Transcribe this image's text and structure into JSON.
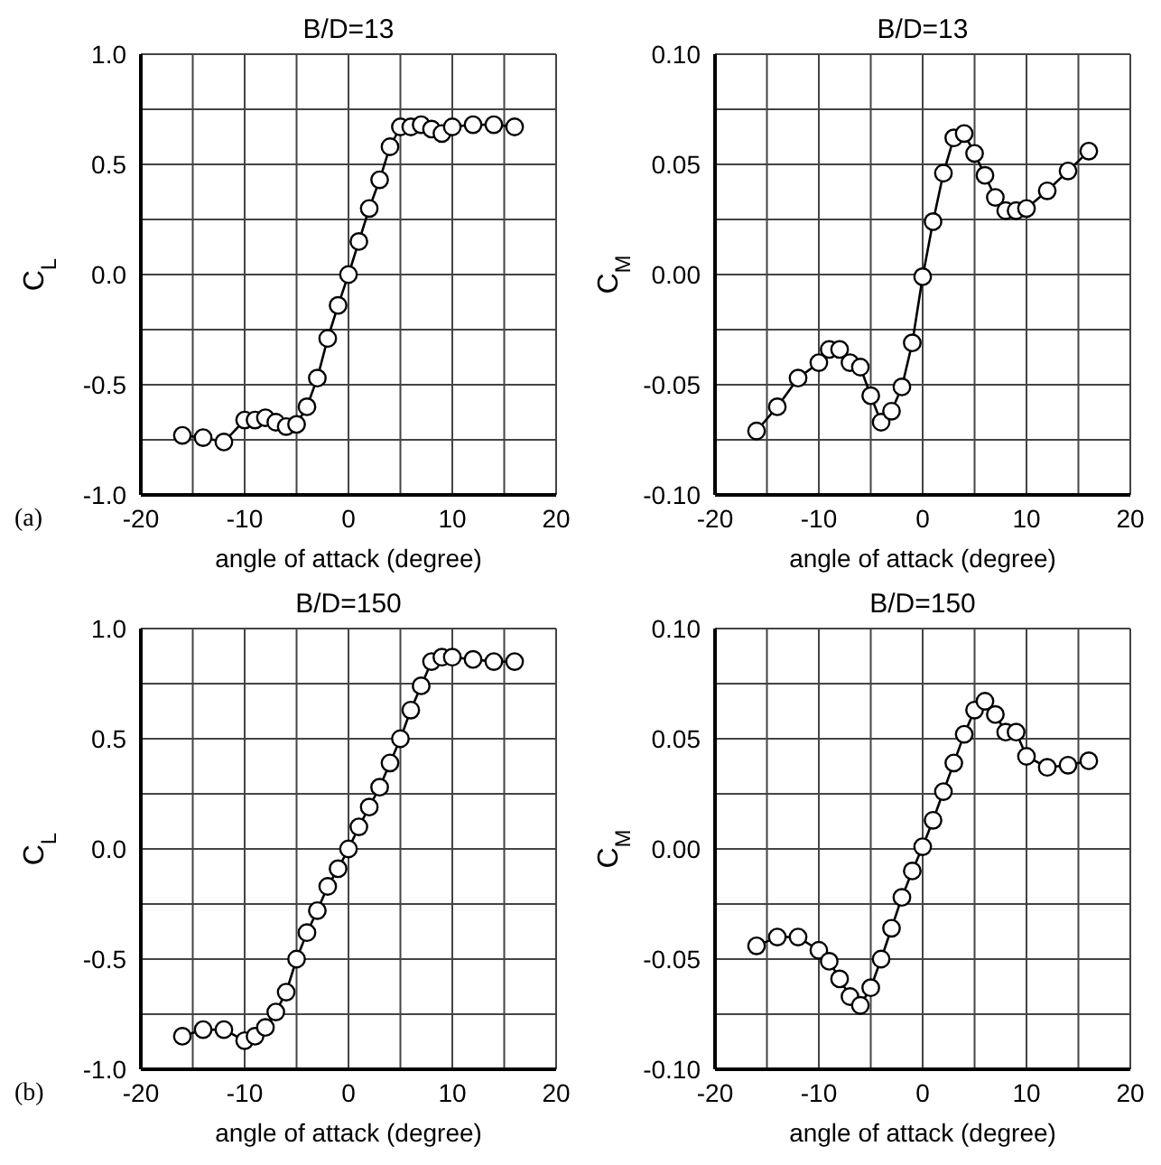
{
  "chart_data": [
    {
      "type": "line",
      "title": "B/D=13",
      "xlabel": "angle of attack (degree)",
      "ylabel": "C$_{L}$",
      "annotations": [
        "(a)"
      ],
      "marker": "circle",
      "line_style": "solid",
      "grid": true,
      "legend": false,
      "x": [
        -16,
        -14,
        -12,
        -10,
        -9,
        -8,
        -7,
        -6,
        -5,
        -4,
        -3,
        -2,
        -1,
        0,
        1,
        2,
        3,
        4,
        5,
        6,
        7,
        8,
        9,
        10,
        12,
        14,
        16
      ],
      "series": [
        {
          "color": "#000000",
          "values": [
            -0.73,
            -0.74,
            -0.76,
            -0.66,
            -0.66,
            -0.65,
            -0.67,
            -0.69,
            -0.68,
            -0.6,
            -0.47,
            -0.29,
            -0.14,
            0.0,
            0.15,
            0.3,
            0.43,
            0.58,
            0.67,
            0.67,
            0.68,
            0.66,
            0.64,
            0.67,
            0.68,
            0.68,
            0.67
          ]
        }
      ],
      "xlim": [
        -20,
        20
      ],
      "xticks": [
        -20,
        {
          "value": -15,
          "label": null
        },
        -10,
        {
          "value": -5,
          "label": null
        },
        0,
        {
          "value": 5,
          "label": null
        },
        10,
        {
          "value": 15,
          "label": null
        },
        20
      ],
      "ylim": [
        -1,
        1
      ],
      "yticks": [
        {
          "value": -1,
          "label": "-1.0"
        },
        {
          "value": -0.75,
          "label": null
        },
        {
          "value": -0.5,
          "label": "-0.5"
        },
        {
          "value": -0.25,
          "label": null
        },
        {
          "value": 0,
          "label": "0.0"
        },
        {
          "value": 0.25,
          "label": null
        },
        {
          "value": 0.5,
          "label": "0.5"
        },
        {
          "value": 0.75,
          "label": null
        },
        {
          "value": 1,
          "label": "1.0"
        }
      ]
    },
    {
      "type": "line",
      "title": "B/D=13",
      "xlabel": "angle of attack (degree)",
      "ylabel": "C$_{M}$",
      "marker": "circle",
      "line_style": "solid",
      "grid": true,
      "legend": false,
      "x": [
        -16,
        -14,
        -12,
        -10,
        -9,
        -8,
        -7,
        -6,
        -5,
        -4,
        -3,
        -2,
        -1,
        0,
        1,
        2,
        3,
        4,
        5,
        6,
        7,
        8,
        9,
        10,
        12,
        14,
        16
      ],
      "series": [
        {
          "color": "#000000",
          "values": [
            -0.071,
            -0.06,
            -0.047,
            -0.04,
            -0.034,
            -0.034,
            -0.04,
            -0.042,
            -0.055,
            -0.067,
            -0.062,
            -0.051,
            -0.031,
            -0.001,
            0.024,
            0.046,
            0.062,
            0.064,
            0.055,
            0.045,
            0.035,
            0.029,
            0.029,
            0.03,
            0.038,
            0.047,
            0.056
          ]
        }
      ],
      "xlim": [
        -20,
        20
      ],
      "xticks": [
        -20,
        {
          "value": -15,
          "label": null
        },
        -10,
        {
          "value": -5,
          "label": null
        },
        0,
        {
          "value": 5,
          "label": null
        },
        10,
        {
          "value": 15,
          "label": null
        },
        20
      ],
      "ylim": [
        -0.1,
        0.1
      ],
      "yticks": [
        {
          "value": -0.1,
          "label": "-0.10"
        },
        {
          "value": -0.075,
          "label": null
        },
        {
          "value": -0.05,
          "label": "-0.05"
        },
        {
          "value": -0.025,
          "label": null
        },
        {
          "value": 0,
          "label": "0.00"
        },
        {
          "value": 0.025,
          "label": null
        },
        {
          "value": 0.05,
          "label": "0.05"
        },
        {
          "value": 0.075,
          "label": null
        },
        {
          "value": 0.1,
          "label": "0.10"
        }
      ]
    },
    {
      "type": "line",
      "title": "B/D=150",
      "xlabel": "angle of attack (degree)",
      "ylabel": "C$_{L}$",
      "annotations": [
        "(b)"
      ],
      "marker": "circle",
      "line_style": "solid",
      "grid": true,
      "legend": false,
      "x": [
        -16,
        -14,
        -12,
        -10,
        -9,
        -8,
        -7,
        -6,
        -5,
        -4,
        -3,
        -2,
        -1,
        0,
        1,
        2,
        3,
        4,
        5,
        6,
        7,
        8,
        9,
        10,
        12,
        14,
        16
      ],
      "series": [
        {
          "color": "#000000",
          "values": [
            -0.85,
            -0.82,
            -0.82,
            -0.87,
            -0.85,
            -0.81,
            -0.74,
            -0.65,
            -0.5,
            -0.38,
            -0.28,
            -0.17,
            -0.09,
            0.0,
            0.1,
            0.19,
            0.28,
            0.39,
            0.5,
            0.63,
            0.74,
            0.85,
            0.87,
            0.87,
            0.86,
            0.85,
            0.85
          ]
        }
      ],
      "xlim": [
        -20,
        20
      ],
      "xticks": [
        -20,
        {
          "value": -15,
          "label": null
        },
        -10,
        {
          "value": -5,
          "label": null
        },
        0,
        {
          "value": 5,
          "label": null
        },
        10,
        {
          "value": 15,
          "label": null
        },
        20
      ],
      "ylim": [
        -1,
        1
      ],
      "yticks": [
        {
          "value": -1,
          "label": "-1.0"
        },
        {
          "value": -0.75,
          "label": null
        },
        {
          "value": -0.5,
          "label": "-0.5"
        },
        {
          "value": -0.25,
          "label": null
        },
        {
          "value": 0,
          "label": "0.0"
        },
        {
          "value": 0.25,
          "label": null
        },
        {
          "value": 0.5,
          "label": "0.5"
        },
        {
          "value": 0.75,
          "label": null
        },
        {
          "value": 1,
          "label": "1.0"
        }
      ]
    },
    {
      "type": "line",
      "title": "B/D=150",
      "xlabel": "angle of attack (degree)",
      "ylabel": "C$_{M}$",
      "marker": "circle",
      "line_style": "solid",
      "grid": true,
      "legend": false,
      "x": [
        -16,
        -14,
        -12,
        -10,
        -9,
        -8,
        -7,
        -6,
        -5,
        -4,
        -3,
        -2,
        -1,
        0,
        1,
        2,
        3,
        4,
        5,
        6,
        7,
        8,
        9,
        10,
        12,
        14,
        16
      ],
      "series": [
        {
          "color": "#000000",
          "values": [
            -0.044,
            -0.04,
            -0.04,
            -0.046,
            -0.051,
            -0.059,
            -0.067,
            -0.071,
            -0.063,
            -0.05,
            -0.036,
            -0.022,
            -0.01,
            0.001,
            0.013,
            0.026,
            0.039,
            0.052,
            0.063,
            0.067,
            0.061,
            0.053,
            0.053,
            0.042,
            0.037,
            0.038,
            0.04
          ]
        }
      ],
      "xlim": [
        -20,
        20
      ],
      "xticks": [
        -20,
        {
          "value": -15,
          "label": null
        },
        -10,
        {
          "value": -5,
          "label": null
        },
        0,
        {
          "value": 5,
          "label": null
        },
        10,
        {
          "value": 15,
          "label": null
        },
        20
      ],
      "ylim": [
        -0.1,
        0.1
      ],
      "yticks": [
        {
          "value": -0.1,
          "label": "-0.10"
        },
        {
          "value": -0.075,
          "label": null
        },
        {
          "value": -0.05,
          "label": "-0.05"
        },
        {
          "value": -0.025,
          "label": null
        },
        {
          "value": 0,
          "label": "0.00"
        },
        {
          "value": 0.025,
          "label": null
        },
        {
          "value": 0.05,
          "label": "0.05"
        },
        {
          "value": 0.075,
          "label": null
        },
        {
          "value": 0.1,
          "label": "0.10"
        }
      ]
    }
  ]
}
